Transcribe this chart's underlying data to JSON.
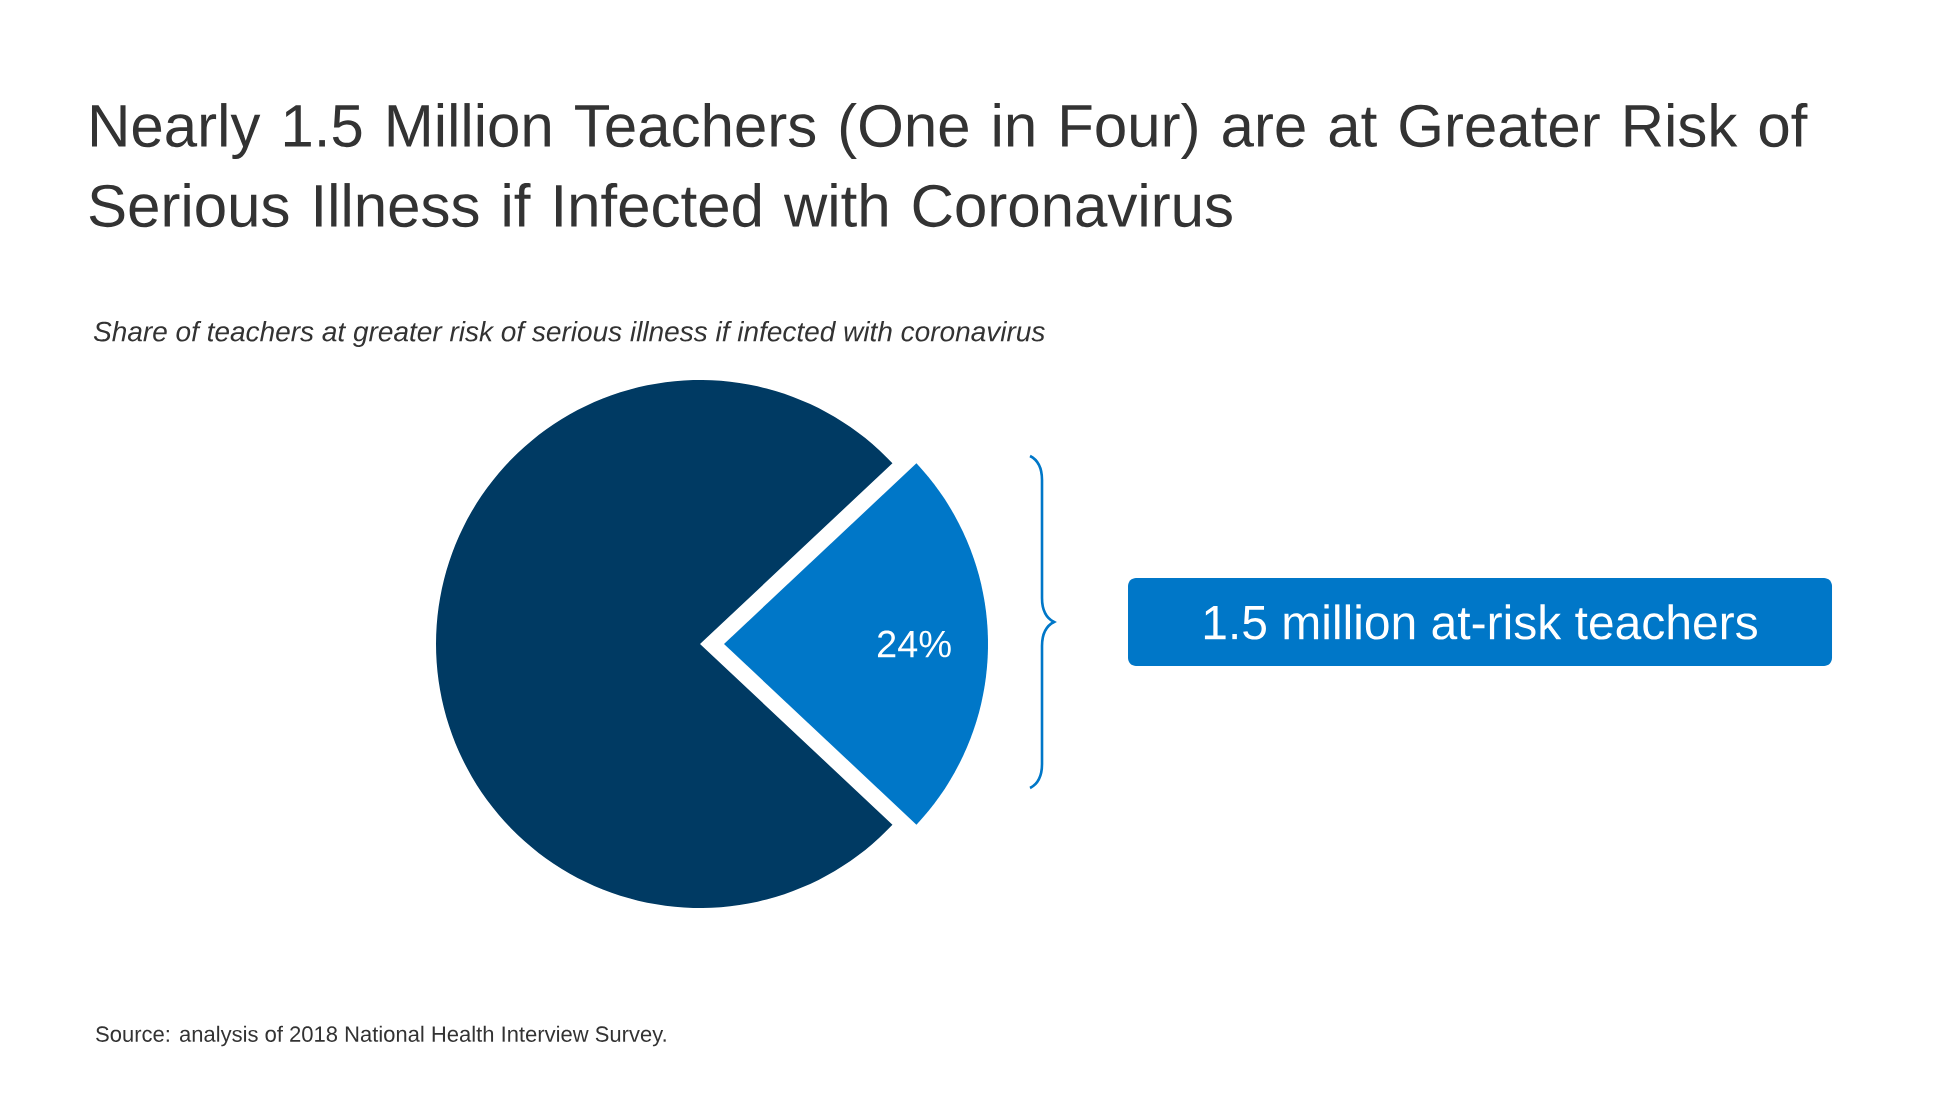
{
  "chart_data": {
    "type": "pie",
    "title": "Nearly 1.5 Million Teachers (One in Four) are at Greater Risk of Serious Illness if Infected with Coronavirus",
    "subtitle": "Share of teachers at greater risk of serious illness if infected with coronavirus",
    "categories": [
      null,
      null
    ],
    "values": [
      24,
      76
    ],
    "colors": [
      "#0077c8",
      "#003a63"
    ],
    "value_labels": [
      "24%",
      null
    ],
    "annotations": [
      "1.5 million at-risk teachers",
      "Source: analysis of 2018 National Health Interview Survey."
    ]
  }
}
